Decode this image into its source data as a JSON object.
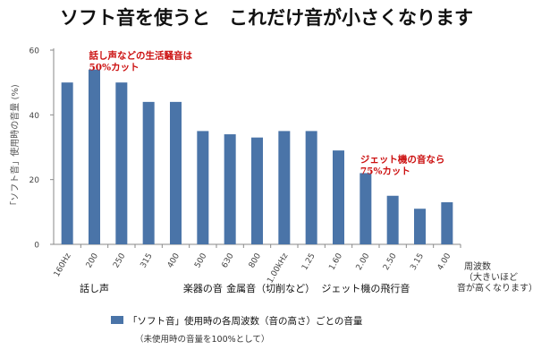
{
  "chart_data": {
    "type": "bar",
    "title": "ソフト音を使うと　これだけ音が小さくなります",
    "ylabel": "「ソフト音」使用時の音量 (%)",
    "xlabel": "周波数",
    "xlabel_note": [
      "（大きいほど",
      "音が高くなります）"
    ],
    "ylim": [
      0,
      60
    ],
    "yticks": [
      "0",
      "20",
      "40",
      "60"
    ],
    "grid": false,
    "categories": [
      "160Hz",
      "200",
      "250",
      "315",
      "400",
      "500",
      "630",
      "800",
      "1.00kHz",
      "1.25",
      "1.60",
      "2.00",
      "2.50",
      "3.15",
      "4.00"
    ],
    "series": [
      {
        "name": "「ソフト音」使用時の各周波数（音の高さ）ごとの音量",
        "color": "#4a74a8",
        "values": [
          50,
          54,
          50,
          44,
          44,
          35,
          34,
          33,
          35,
          35,
          29,
          22,
          15,
          11,
          13
        ]
      }
    ],
    "legend_position": "bottom",
    "legend_note": "（未使用時の音量を100%として）",
    "groups": [
      {
        "label": "話し声",
        "anchor": 1
      },
      {
        "label": "楽器の音",
        "anchor": 5
      },
      {
        "label": "金属音（切削など）",
        "anchor": 7.5
      },
      {
        "label": "ジェット機の飛行音",
        "anchor": 11
      }
    ],
    "annotations": [
      {
        "lines": [
          "話し声などの生活騒音は",
          "50%カット"
        ],
        "anchor": 1
      },
      {
        "lines": [
          "ジェット機の音なら",
          "75%カット"
        ],
        "anchor": 11
      }
    ]
  }
}
